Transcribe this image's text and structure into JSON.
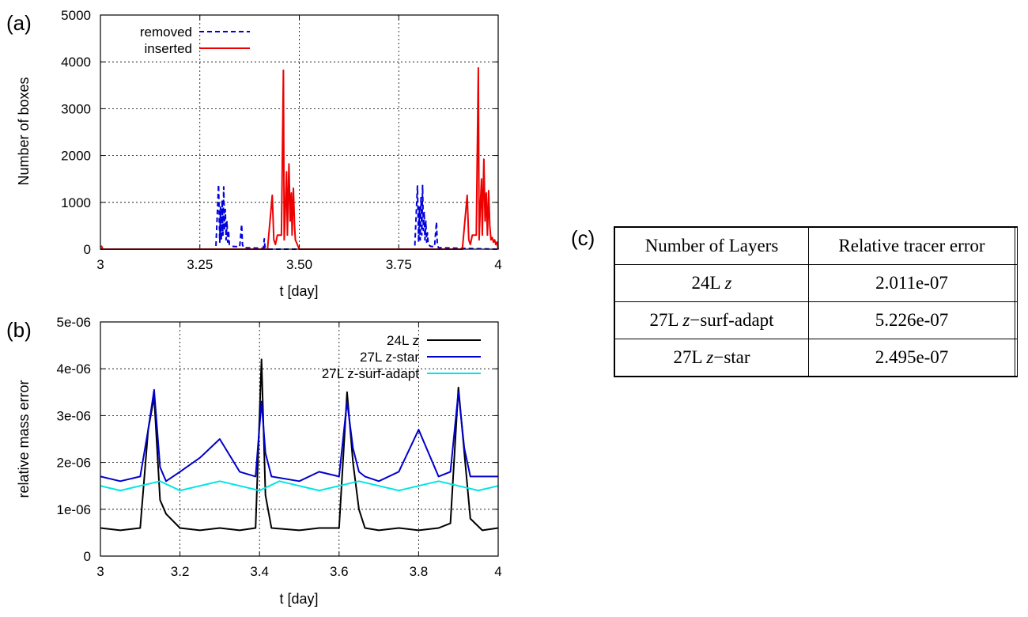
{
  "panels": {
    "a": "(a)",
    "b": "(b)",
    "c": "(c)"
  },
  "chart_data": [
    {
      "type": "line",
      "panel": "(a)",
      "xlabel": "t [day]",
      "ylabel": "Number of boxes",
      "xlim": [
        3,
        4
      ],
      "ylim": [
        0,
        5000
      ],
      "xticks": [
        "3",
        "3.25",
        "3.50",
        "3.75",
        "4"
      ],
      "yticks": [
        "0",
        "1000",
        "2000",
        "3000",
        "4000",
        "5000"
      ],
      "grid": true,
      "legend_position": "top-left",
      "series": [
        {
          "name": "removed",
          "color": "#0000dd",
          "style": "dashed",
          "x": [
            3.0,
            3.29,
            3.297,
            3.3,
            3.302,
            3.304,
            3.306,
            3.308,
            3.31,
            3.312,
            3.314,
            3.316,
            3.318,
            3.32,
            3.322,
            3.324,
            3.33,
            3.35,
            3.355,
            3.357,
            3.36,
            3.41,
            3.412,
            3.414,
            3.42,
            3.79,
            3.797,
            3.8,
            3.802,
            3.804,
            3.806,
            3.808,
            3.81,
            3.812,
            3.814,
            3.816,
            3.818,
            3.82,
            3.822,
            3.824,
            3.83,
            3.84,
            3.845,
            3.847,
            3.85,
            4.0
          ],
          "y": [
            0,
            0,
            1380,
            150,
            900,
            200,
            1050,
            300,
            1330,
            400,
            850,
            200,
            600,
            150,
            400,
            100,
            60,
            50,
            530,
            100,
            30,
            20,
            220,
            30,
            0,
            0,
            1350,
            150,
            900,
            200,
            1100,
            300,
            1360,
            400,
            800,
            200,
            600,
            150,
            350,
            100,
            60,
            50,
            580,
            100,
            30,
            0
          ]
        },
        {
          "name": "inserted",
          "color": "#ee0000",
          "style": "solid",
          "x": [
            3.0,
            3.003,
            3.006,
            3.01,
            3.42,
            3.432,
            3.436,
            3.44,
            3.445,
            3.455,
            3.46,
            3.462,
            3.465,
            3.468,
            3.47,
            3.474,
            3.477,
            3.48,
            3.482,
            3.485,
            3.488,
            3.49,
            3.5,
            3.91,
            3.922,
            3.926,
            3.93,
            3.935,
            3.945,
            3.95,
            3.952,
            3.955,
            3.958,
            3.96,
            3.964,
            3.967,
            3.97,
            3.973,
            3.976,
            3.979,
            3.982,
            3.985,
            3.988,
            3.991,
            3.994,
            3.997,
            4.0
          ],
          "y": [
            50,
            60,
            0,
            0,
            0,
            1150,
            200,
            100,
            300,
            300,
            3820,
            200,
            900,
            1650,
            300,
            1820,
            600,
            1200,
            300,
            1300,
            500,
            200,
            0,
            0,
            1150,
            200,
            100,
            300,
            300,
            3870,
            200,
            900,
            1500,
            300,
            1920,
            600,
            1200,
            300,
            1250,
            500,
            200,
            250,
            150,
            200,
            100,
            150,
            0
          ]
        }
      ]
    },
    {
      "type": "line",
      "panel": "(b)",
      "xlabel": "t [day]",
      "ylabel": "relative mass error",
      "xlim": [
        3,
        4
      ],
      "ylim": [
        0,
        5e-06
      ],
      "xticks": [
        "3",
        "3.2",
        "3.4",
        "3.6",
        "3.8",
        "4"
      ],
      "yticks": [
        "0",
        "1e-06",
        "2e-06",
        "3e-06",
        "4e-06",
        "5e-06"
      ],
      "grid": true,
      "legend_position": "top-right",
      "series": [
        {
          "name": "24L z",
          "color": "#000000",
          "x": [
            3.0,
            3.05,
            3.1,
            3.12,
            3.135,
            3.15,
            3.165,
            3.2,
            3.25,
            3.3,
            3.35,
            3.39,
            3.405,
            3.415,
            3.43,
            3.5,
            3.55,
            3.6,
            3.62,
            3.635,
            3.65,
            3.665,
            3.7,
            3.75,
            3.8,
            3.85,
            3.88,
            3.9,
            3.915,
            3.93,
            3.96,
            4.0
          ],
          "y": [
            6e-07,
            5.5e-07,
            6e-07,
            2.7e-06,
            3.4e-06,
            1.2e-06,
            9e-07,
            6e-07,
            5.5e-07,
            6e-07,
            5.5e-07,
            6e-07,
            4.2e-06,
            1.3e-06,
            6e-07,
            5.5e-07,
            6e-07,
            6e-07,
            3.5e-06,
            2e-06,
            1e-06,
            6e-07,
            5.5e-07,
            6e-07,
            5.5e-07,
            6e-07,
            7e-07,
            3.6e-06,
            2.2e-06,
            8e-07,
            5.5e-07,
            6e-07
          ]
        },
        {
          "name": "27L z-star",
          "color": "#0000cc",
          "x": [
            3.0,
            3.05,
            3.1,
            3.12,
            3.135,
            3.15,
            3.165,
            3.2,
            3.25,
            3.3,
            3.35,
            3.39,
            3.405,
            3.415,
            3.43,
            3.5,
            3.55,
            3.6,
            3.62,
            3.635,
            3.65,
            3.665,
            3.7,
            3.75,
            3.8,
            3.85,
            3.88,
            3.9,
            3.915,
            3.93,
            3.96,
            4.0
          ],
          "y": [
            1.7e-06,
            1.6e-06,
            1.7e-06,
            2.7e-06,
            3.55e-06,
            1.9e-06,
            1.6e-06,
            1.8e-06,
            2.1e-06,
            2.5e-06,
            1.8e-06,
            1.7e-06,
            3.3e-06,
            2.2e-06,
            1.7e-06,
            1.6e-06,
            1.8e-06,
            1.7e-06,
            3.3e-06,
            2.3e-06,
            1.8e-06,
            1.7e-06,
            1.6e-06,
            1.8e-06,
            2.7e-06,
            1.7e-06,
            1.8e-06,
            3.5e-06,
            2.3e-06,
            1.7e-06,
            1.7e-06,
            1.7e-06
          ]
        },
        {
          "name": "27L z-surf-adapt",
          "color": "#00e5e5",
          "x": [
            3.0,
            3.05,
            3.1,
            3.15,
            3.2,
            3.25,
            3.3,
            3.35,
            3.4,
            3.45,
            3.5,
            3.55,
            3.6,
            3.65,
            3.7,
            3.75,
            3.8,
            3.85,
            3.9,
            3.95,
            4.0
          ],
          "y": [
            1.5e-06,
            1.4e-06,
            1.5e-06,
            1.6e-06,
            1.4e-06,
            1.5e-06,
            1.6e-06,
            1.5e-06,
            1.4e-06,
            1.6e-06,
            1.5e-06,
            1.4e-06,
            1.5e-06,
            1.6e-06,
            1.5e-06,
            1.4e-06,
            1.5e-06,
            1.6e-06,
            1.5e-06,
            1.4e-06,
            1.5e-06
          ]
        }
      ]
    },
    {
      "type": "table",
      "panel": "(c)",
      "columns": [
        "Number of Layers",
        "Relative tracer error"
      ],
      "rows": [
        {
          "layers_prefix": "24L ",
          "layers_var": "z",
          "layers_suffix": "",
          "error": "2.011e-07"
        },
        {
          "layers_prefix": "27L ",
          "layers_var": "z",
          "layers_suffix": "−surf-adapt",
          "error": "5.226e-07"
        },
        {
          "layers_prefix": "27L ",
          "layers_var": "z",
          "layers_suffix": "−star",
          "error": "2.495e-07"
        }
      ]
    }
  ]
}
